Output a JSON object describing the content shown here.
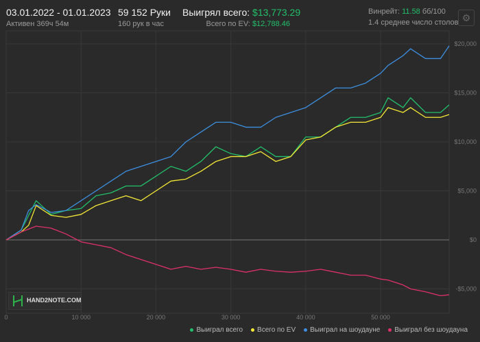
{
  "header": {
    "date_range": "03.01.2022 - 01.01.2023",
    "active": "Активен 369ч 54м",
    "hands": "59 152 Руки",
    "hands_per_hour": "160 рук в час",
    "won_total_label": "Выигрял всего:",
    "won_total_value": "$13,773.29",
    "ev_label": "Всего по EV:",
    "ev_value": "$12,788.46",
    "winrate_label": "Винрейт:",
    "winrate_value": "11.58",
    "winrate_unit": "бб/100",
    "avg_tables": "1.4 среднее число столов",
    "settings_icon": "gear-icon"
  },
  "watermark": "HAND2NOTE.COM",
  "chart_data": {
    "type": "line",
    "xlim": [
      0,
      59152
    ],
    "ylim": [
      -6500,
      21500
    ],
    "grid": true,
    "legend_placement": "bottom-right",
    "x_ticks": [
      {
        "v": 0,
        "label": "0"
      },
      {
        "v": 10000,
        "label": "10 000"
      },
      {
        "v": 20000,
        "label": "20 000"
      },
      {
        "v": 30000,
        "label": "30 000"
      },
      {
        "v": 40000,
        "label": "40 000"
      },
      {
        "v": 50000,
        "label": "50 000"
      }
    ],
    "y_ticks": [
      {
        "v": 20000,
        "label": "$20,000"
      },
      {
        "v": 15000,
        "label": "$15,000"
      },
      {
        "v": 10000,
        "label": "$10,000"
      },
      {
        "v": 5000,
        "label": "$5,000"
      },
      {
        "v": 0,
        "label": "$0"
      },
      {
        "v": -5000,
        "label": "-$5,000"
      }
    ],
    "x": [
      0,
      2000,
      3000,
      4000,
      6000,
      8000,
      10000,
      12000,
      14000,
      16000,
      18000,
      20000,
      22000,
      24000,
      26000,
      28000,
      30000,
      32000,
      34000,
      36000,
      38000,
      40000,
      42000,
      44000,
      46000,
      48000,
      50000,
      51000,
      53000,
      54000,
      56000,
      58000,
      59152
    ],
    "series": [
      {
        "name": "Выиграл всего",
        "color": "#22c06a",
        "values": [
          0,
          1000,
          2500,
          4000,
          2600,
          3000,
          3200,
          4500,
          4800,
          5500,
          5500,
          6500,
          7500,
          7000,
          8000,
          9500,
          8800,
          8500,
          9500,
          8500,
          8500,
          10500,
          10500,
          11500,
          12500,
          12500,
          13000,
          14500,
          13500,
          14500,
          13000,
          13000,
          13773
        ]
      },
      {
        "name": "Всего по EV",
        "color": "#f5e935",
        "values": [
          0,
          800,
          1500,
          3500,
          2500,
          2300,
          2600,
          3500,
          4000,
          4500,
          4000,
          5000,
          6000,
          6200,
          7000,
          8000,
          8500,
          8500,
          9000,
          8000,
          8500,
          10200,
          10500,
          11500,
          12000,
          12000,
          12500,
          13500,
          13000,
          13500,
          12500,
          12500,
          12788
        ]
      },
      {
        "name": "Выиграл на шоудауне",
        "color": "#3d8fe0",
        "values": [
          0,
          1000,
          3000,
          3600,
          2800,
          3000,
          4000,
          5000,
          6000,
          7000,
          7500,
          8000,
          8500,
          10000,
          11000,
          12000,
          12000,
          11500,
          11500,
          12500,
          13000,
          13500,
          14500,
          15500,
          15500,
          16000,
          17000,
          17800,
          18800,
          19500,
          18500,
          18500,
          19800
        ]
      },
      {
        "name": "Выиграл без шоудауна",
        "color": "#e0306a",
        "values": [
          0,
          800,
          1100,
          1400,
          1200,
          600,
          -200,
          -500,
          -800,
          -1500,
          -2000,
          -2500,
          -3000,
          -2700,
          -3000,
          -2800,
          -3000,
          -3300,
          -3000,
          -3200,
          -3300,
          -3200,
          -3000,
          -3300,
          -3600,
          -3600,
          -4000,
          -4100,
          -4600,
          -5000,
          -5300,
          -5700,
          -5600
        ]
      }
    ]
  }
}
